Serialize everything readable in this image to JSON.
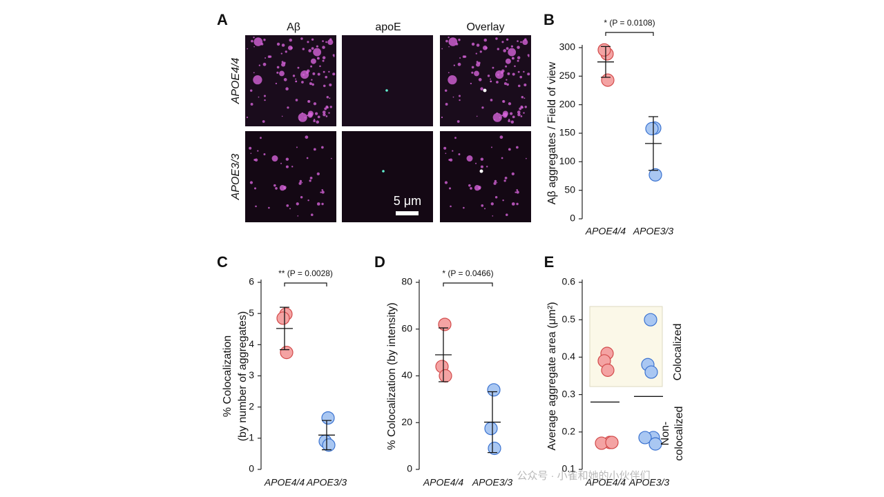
{
  "panel_a": {
    "label": "A",
    "columns": [
      "Aβ",
      "apoE",
      "Overlay"
    ],
    "rows": [
      "APOE4/4",
      "APOE3/3"
    ],
    "scale_bar": "5 μm"
  },
  "watermark": "公众号 · 小雀和她的小伙伴们",
  "chart_data": [
    {
      "type": "dot_plot",
      "panel": "B",
      "ylabel": [
        "Aβ aggregates / Field of view"
      ],
      "annotation": "* (P = 0.0108)",
      "categories": [
        "APOE4/4",
        "APOE3/3"
      ],
      "colors": [
        "#f4a3a3",
        "#a9c7f2"
      ],
      "edge_colors": [
        "#d24a4a",
        "#3a72d0"
      ],
      "ylim": [
        0,
        300
      ],
      "yticks": [
        0,
        50,
        100,
        150,
        200,
        250,
        300
      ],
      "series": [
        {
          "values": [
            [
              289,
              296,
              243
            ],
            [
              159,
              158,
              77
            ]
          ]
        }
      ],
      "means": [
        275,
        132
      ],
      "errors": [
        27,
        47
      ]
    },
    {
      "type": "dot_plot",
      "panel": "C",
      "ylabel": [
        "% Colocalization",
        "(by number of aggregates)"
      ],
      "annotation": "** (P = 0.0028)",
      "categories": [
        "APOE4/4",
        "APOE3/3"
      ],
      "colors": [
        "#f4a3a3",
        "#a9c7f2"
      ],
      "edge_colors": [
        "#d24a4a",
        "#3a72d0"
      ],
      "ylim": [
        0,
        6
      ],
      "yticks": [
        0,
        1,
        2,
        3,
        4,
        5,
        6
      ],
      "series": [
        {
          "values": [
            [
              4.98,
              4.85,
              3.75
            ],
            [
              1.65,
              0.9,
              0.78
            ]
          ]
        }
      ],
      "means": [
        4.52,
        1.1
      ],
      "errors": [
        0.68,
        0.47
      ]
    },
    {
      "type": "dot_plot",
      "panel": "D",
      "ylabel": [
        "% Colocalization (by intensity)"
      ],
      "annotation": "* (P = 0.0466)",
      "categories": [
        "APOE4/4",
        "APOE3/3"
      ],
      "colors": [
        "#f4a3a3",
        "#a9c7f2"
      ],
      "edge_colors": [
        "#d24a4a",
        "#3a72d0"
      ],
      "ylim": [
        0,
        80
      ],
      "yticks": [
        0,
        20,
        40,
        60,
        80
      ],
      "series": [
        {
          "values": [
            [
              62,
              44,
              40
            ],
            [
              34,
              17.5,
              9
            ]
          ]
        }
      ],
      "means": [
        49,
        20.2
      ],
      "errors": [
        11.5,
        13
      ]
    },
    {
      "type": "dot_plot",
      "panel": "E",
      "ylabel": [
        "Average aggregate  area (μm²)"
      ],
      "categories": [
        "APOE4/4",
        "APOE3/3"
      ],
      "colors": [
        "#f4a3a3",
        "#a9c7f2"
      ],
      "edge_colors": [
        "#d24a4a",
        "#3a72d0"
      ],
      "ylim": [
        0.1,
        0.6
      ],
      "yticks": [
        0.1,
        0.2,
        0.3,
        0.4,
        0.5,
        0.6
      ],
      "series": [
        {
          "name_lines": [
            "Colocalized"
          ],
          "values": [
            [
              0.41,
              0.39,
              0.365
            ],
            [
              0.5,
              0.38,
              0.36
            ]
          ]
        },
        {
          "name_lines": [
            "Non-",
            "colocalized"
          ],
          "values": [
            [
              0.172,
              0.17,
              0.172
            ],
            [
              0.185,
              0.185,
              0.168
            ]
          ]
        }
      ],
      "means": [
        0.28,
        0.295
      ]
    }
  ]
}
